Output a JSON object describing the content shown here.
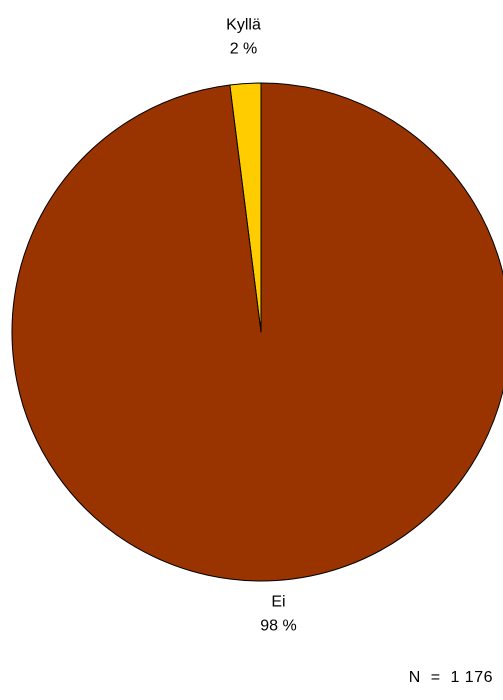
{
  "chart_data": {
    "type": "pie",
    "slices": [
      {
        "label": "Kyllä",
        "percent_label": "2 %",
        "value": 2,
        "color": "#ffcc00"
      },
      {
        "label": "Ei",
        "percent_label": "98 %",
        "value": 98,
        "color": "#993300"
      }
    ],
    "start": "12 o'clock",
    "direction": "counter-clockwise",
    "n_label": "N  =  1 176"
  }
}
